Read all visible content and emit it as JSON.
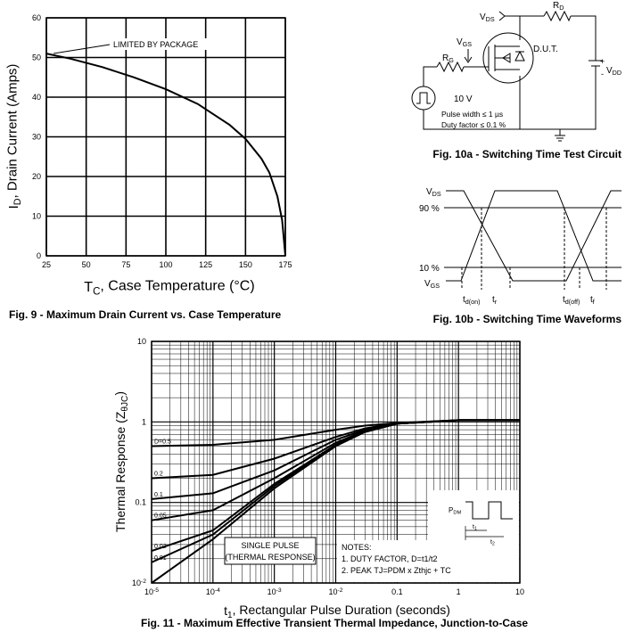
{
  "chart_data": [
    {
      "type": "line",
      "caption": "Fig. 9 - Maximum Drain Current vs. Case Temperature",
      "xlabel": {
        "main": "T",
        "sub": "C",
        "rest": ", Case Temperature (°C)"
      },
      "ylabel": {
        "main": "I",
        "sub": "D",
        "rest": ", Drain Current (Amps)"
      },
      "annotation": "LIMITED BY PACKAGE",
      "x": [
        25,
        40,
        60,
        80,
        100,
        120,
        140,
        150,
        160,
        165,
        170,
        173,
        175
      ],
      "values": [
        51,
        49.7,
        47.6,
        45,
        42,
        38.3,
        33,
        29.5,
        24.5,
        21,
        15,
        9,
        0
      ],
      "color": "#000000",
      "xlim": [
        25,
        175
      ],
      "xticks": [
        25,
        50,
        75,
        100,
        125,
        150,
        175
      ],
      "ylim": [
        0,
        60
      ],
      "yticks": [
        0,
        10,
        20,
        30,
        40,
        50,
        60
      ],
      "grid": true
    },
    {
      "type": "line",
      "caption": "Fig. 11 - Maximum Effective Transient Thermal Impedance, Junction-to-Case",
      "xlabel": {
        "main": "t",
        "sub": "1",
        "rest": ", Rectangular Pulse Duration (seconds)"
      },
      "ylabel": {
        "main": "Thermal Response (Z",
        "sub": "θJC",
        "rest": ")"
      },
      "log_x": true,
      "log_y": true,
      "grid": true,
      "minor_grid": true,
      "x": [
        1e-05,
        0.0001,
        0.001,
        0.01,
        0.03,
        0.1,
        1,
        10
      ],
      "series": [
        {
          "name": "D=0.5",
          "color": "#000000",
          "values": [
            0.5,
            0.52,
            0.6,
            0.8,
            0.9,
            0.97,
            1.05,
            1.05
          ]
        },
        {
          "name": "0.2",
          "color": "#000000",
          "values": [
            0.2,
            0.22,
            0.35,
            0.65,
            0.83,
            0.96,
            1.05,
            1.05
          ]
        },
        {
          "name": "0.1",
          "color": "#000000",
          "values": [
            0.11,
            0.13,
            0.25,
            0.6,
            0.8,
            0.95,
            1.05,
            1.05
          ]
        },
        {
          "name": "0.05",
          "color": "#000000",
          "values": [
            0.06,
            0.08,
            0.2,
            0.55,
            0.78,
            0.95,
            1.05,
            1.05
          ]
        },
        {
          "name": "0.02",
          "color": "#000000",
          "values": [
            0.025,
            0.045,
            0.17,
            0.52,
            0.76,
            0.95,
            1.05,
            1.05
          ]
        },
        {
          "name": "0.01",
          "color": "#000000",
          "values": [
            0.018,
            0.04,
            0.16,
            0.51,
            0.75,
            0.95,
            1.05,
            1.05
          ]
        },
        {
          "name": "SINGLE PULSE",
          "note": "(THERMAL RESPONSE)",
          "color": "#000000",
          "values": [
            0.01,
            0.035,
            0.15,
            0.5,
            0.75,
            0.95,
            1.05,
            1.05
          ]
        }
      ],
      "notes": [
        "NOTES:",
        "1. DUTY FACTOR, D=t1/t2",
        "2. PEAK TJ=PDM x Zthjc + TC"
      ],
      "inset": {
        "pdm": {
          "main": "P",
          "sub": "DM"
        },
        "t1": {
          "main": "t",
          "sub": "1"
        },
        "t2": {
          "main": "t",
          "sub": "2"
        }
      },
      "xlim": [
        1e-05,
        10
      ],
      "xticks": [
        {
          "value": 1e-05,
          "label": "10",
          "exponent": "-5"
        },
        {
          "value": 0.0001,
          "label": "10",
          "exponent": "-4"
        },
        {
          "value": 0.001,
          "label": "10",
          "exponent": "-3"
        },
        {
          "value": 0.01,
          "label": "10",
          "exponent": "-2"
        },
        0.1,
        1,
        10
      ],
      "ylim": [
        0.01,
        10
      ],
      "yticks": [
        {
          "value": 0.01,
          "label": "10",
          "exponent": "-2"
        },
        0.1,
        1,
        10
      ]
    }
  ],
  "circuit": {
    "caption": "Fig. 10a - Switching Time Test Circuit",
    "vds": {
      "main": "V",
      "sub": "DS"
    },
    "rd": {
      "main": "R",
      "sub": "D"
    },
    "vgs": {
      "main": "V",
      "sub": "GS"
    },
    "dut": "D.U.T.",
    "rg": {
      "main": "R",
      "sub": "G"
    },
    "vdd_plus": "+",
    "vdd_minus": "-",
    "vdd": {
      "main": "V",
      "sub": "DD"
    },
    "source_voltage": "10 V",
    "pulse_width": "Pulse width ≤ 1 µs",
    "duty_factor": "Duty factor ≤ 0.1 %"
  },
  "waveforms": {
    "caption": "Fig. 10b - Switching Time Waveforms",
    "vds": {
      "main": "V",
      "sub": "DS"
    },
    "ninety": "90 %",
    "ten": "10 %",
    "vgs": {
      "main": "V",
      "sub": "GS"
    },
    "td_on": {
      "main": "t",
      "sub": "d(on)"
    },
    "tr": {
      "main": "t",
      "sub": "r"
    },
    "td_off": {
      "main": "t",
      "sub": "d(off)"
    },
    "tf": {
      "main": "t",
      "sub": "f"
    }
  }
}
